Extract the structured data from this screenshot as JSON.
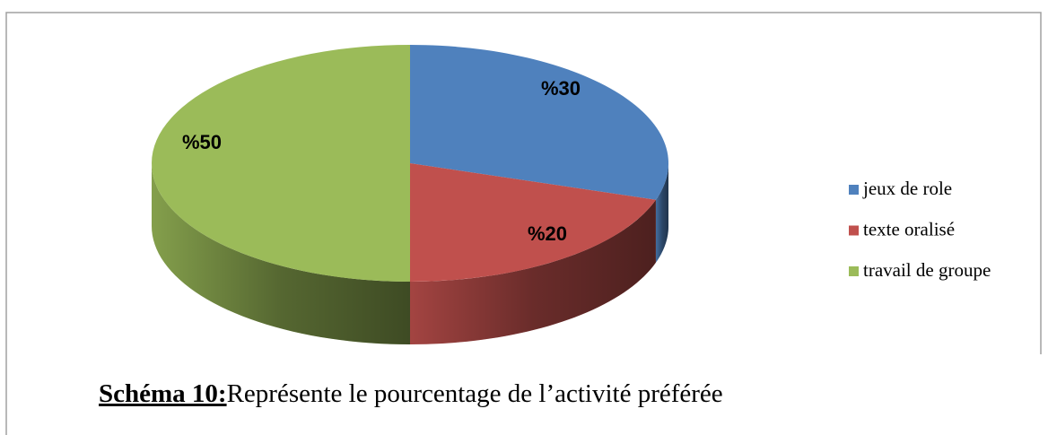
{
  "chart_data": {
    "type": "pie",
    "categories": [
      "jeux de role",
      "texte oralisé",
      "travail de groupe"
    ],
    "values": [
      30,
      20,
      50
    ],
    "value_labels": [
      "%30",
      "%20",
      "%50"
    ],
    "colors": [
      "#4f81bd",
      "#c0504d",
      "#9bbb59"
    ],
    "legend": "right",
    "caption": {
      "label": "Schéma 10:",
      "text": "Représente le pourcentage de l’activité préférée"
    }
  }
}
